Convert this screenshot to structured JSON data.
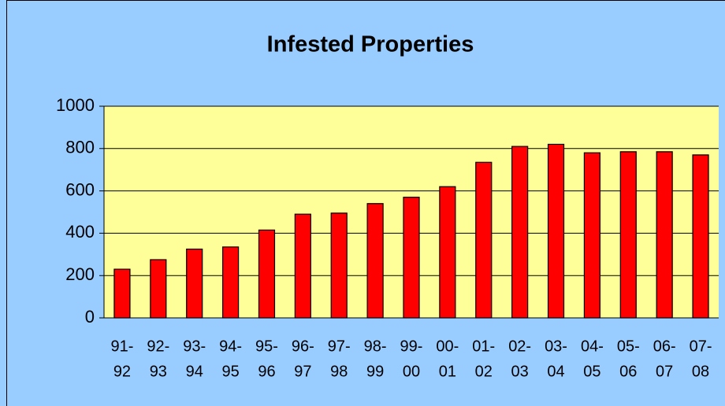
{
  "chart_data": {
    "type": "bar",
    "title": "Infested Properties",
    "categories": [
      [
        "91-",
        "92"
      ],
      [
        "92-",
        "93"
      ],
      [
        "93-",
        "94"
      ],
      [
        "94-",
        "95"
      ],
      [
        "95-",
        "96"
      ],
      [
        "96-",
        "97"
      ],
      [
        "97-",
        "98"
      ],
      [
        "98-",
        "99"
      ],
      [
        "99-",
        "00"
      ],
      [
        "00-",
        "01"
      ],
      [
        "01-",
        "02"
      ],
      [
        "02-",
        "03"
      ],
      [
        "03-",
        "04"
      ],
      [
        "04-",
        "05"
      ],
      [
        "05-",
        "06"
      ],
      [
        "06-",
        "07"
      ],
      [
        "07-",
        "08"
      ]
    ],
    "values": [
      230,
      275,
      325,
      335,
      415,
      490,
      495,
      540,
      570,
      620,
      735,
      810,
      820,
      780,
      785,
      785,
      770
    ],
    "color": "#ff0000",
    "ylim": [
      0,
      1000
    ],
    "yticks": [
      0,
      200,
      400,
      600,
      800,
      1000
    ],
    "grid": true
  }
}
